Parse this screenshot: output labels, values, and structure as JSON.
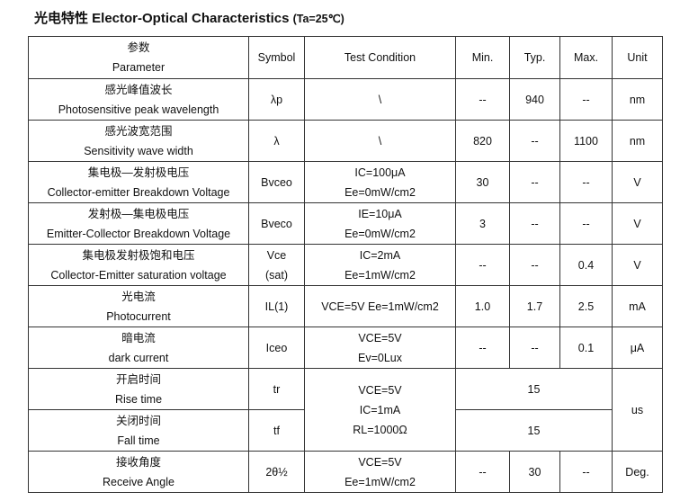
{
  "title": {
    "main": "光电特性 Elector-Optical Characteristics",
    "condition": "(Ta=25℃)"
  },
  "headers": {
    "parameter_cn": "参数",
    "parameter_en": "Parameter",
    "symbol": "Symbol",
    "test_condition": "Test Condition",
    "min": "Min.",
    "typ": "Typ.",
    "max": "Max.",
    "unit": "Unit"
  },
  "rows": [
    {
      "cn": "感光峰值波长",
      "en": "Photosensitive peak wavelength",
      "symbol": [
        "λp"
      ],
      "condition": [
        "\\"
      ],
      "min": "--",
      "typ": "940",
      "max": "--",
      "unit": "nm"
    },
    {
      "cn": "感光波宽范围",
      "en": "Sensitivity wave width",
      "symbol": [
        "λ"
      ],
      "condition": [
        "\\"
      ],
      "min": "820",
      "typ": "--",
      "max": "1100",
      "unit": "nm"
    },
    {
      "cn": "集电极—发射极电压",
      "en": "Collector-emitter Breakdown Voltage",
      "symbol": [
        "Bvceo"
      ],
      "condition": [
        "IC=100μA",
        "Ee=0mW/cm2"
      ],
      "min": "30",
      "typ": "--",
      "max": "--",
      "unit": "V"
    },
    {
      "cn": "发射极—集电极电压",
      "en": "Emitter-Collector Breakdown Voltage",
      "symbol": [
        "Bveco"
      ],
      "condition": [
        "IE=10μA",
        "Ee=0mW/cm2"
      ],
      "min": "3",
      "typ": "--",
      "max": "--",
      "unit": "V"
    },
    {
      "cn": "集电极发射极饱和电压",
      "en": "Collector-Emitter saturation voltage",
      "symbol": [
        "Vce",
        "(sat)"
      ],
      "condition": [
        "IC=2mA",
        "Ee=1mW/cm2"
      ],
      "min": "--",
      "typ": "--",
      "max": "0.4",
      "unit": "V"
    },
    {
      "cn": "光电流",
      "en": "Photocurrent",
      "symbol": [
        "IL(1)"
      ],
      "condition": [
        "VCE=5V   Ee=1mW/cm2"
      ],
      "min": "1.0",
      "typ": "1.7",
      "max": "2.5",
      "unit": "mA"
    },
    {
      "cn": "暗电流",
      "en": "dark current",
      "symbol": [
        "Iceo"
      ],
      "condition": [
        "VCE=5V",
        "Ev=0Lux"
      ],
      "min": "--",
      "typ": "--",
      "max": "0.1",
      "unit": "μA"
    }
  ],
  "timing": {
    "rise": {
      "cn": "开启时间",
      "en": "Rise time",
      "symbol": "tr",
      "value": "15"
    },
    "fall": {
      "cn": "关闭时间",
      "en": "Fall time",
      "symbol": "tf",
      "value": "15"
    },
    "condition": [
      "VCE=5V",
      "IC=1mA",
      "RL=1000Ω"
    ],
    "unit": "us"
  },
  "angle": {
    "cn": "接收角度",
    "en": "Receive Angle",
    "symbol": "2θ½",
    "condition": [
      "VCE=5V",
      "Ee=1mW/cm2"
    ],
    "min": "--",
    "typ": "30",
    "max": "--",
    "unit": "Deg."
  }
}
